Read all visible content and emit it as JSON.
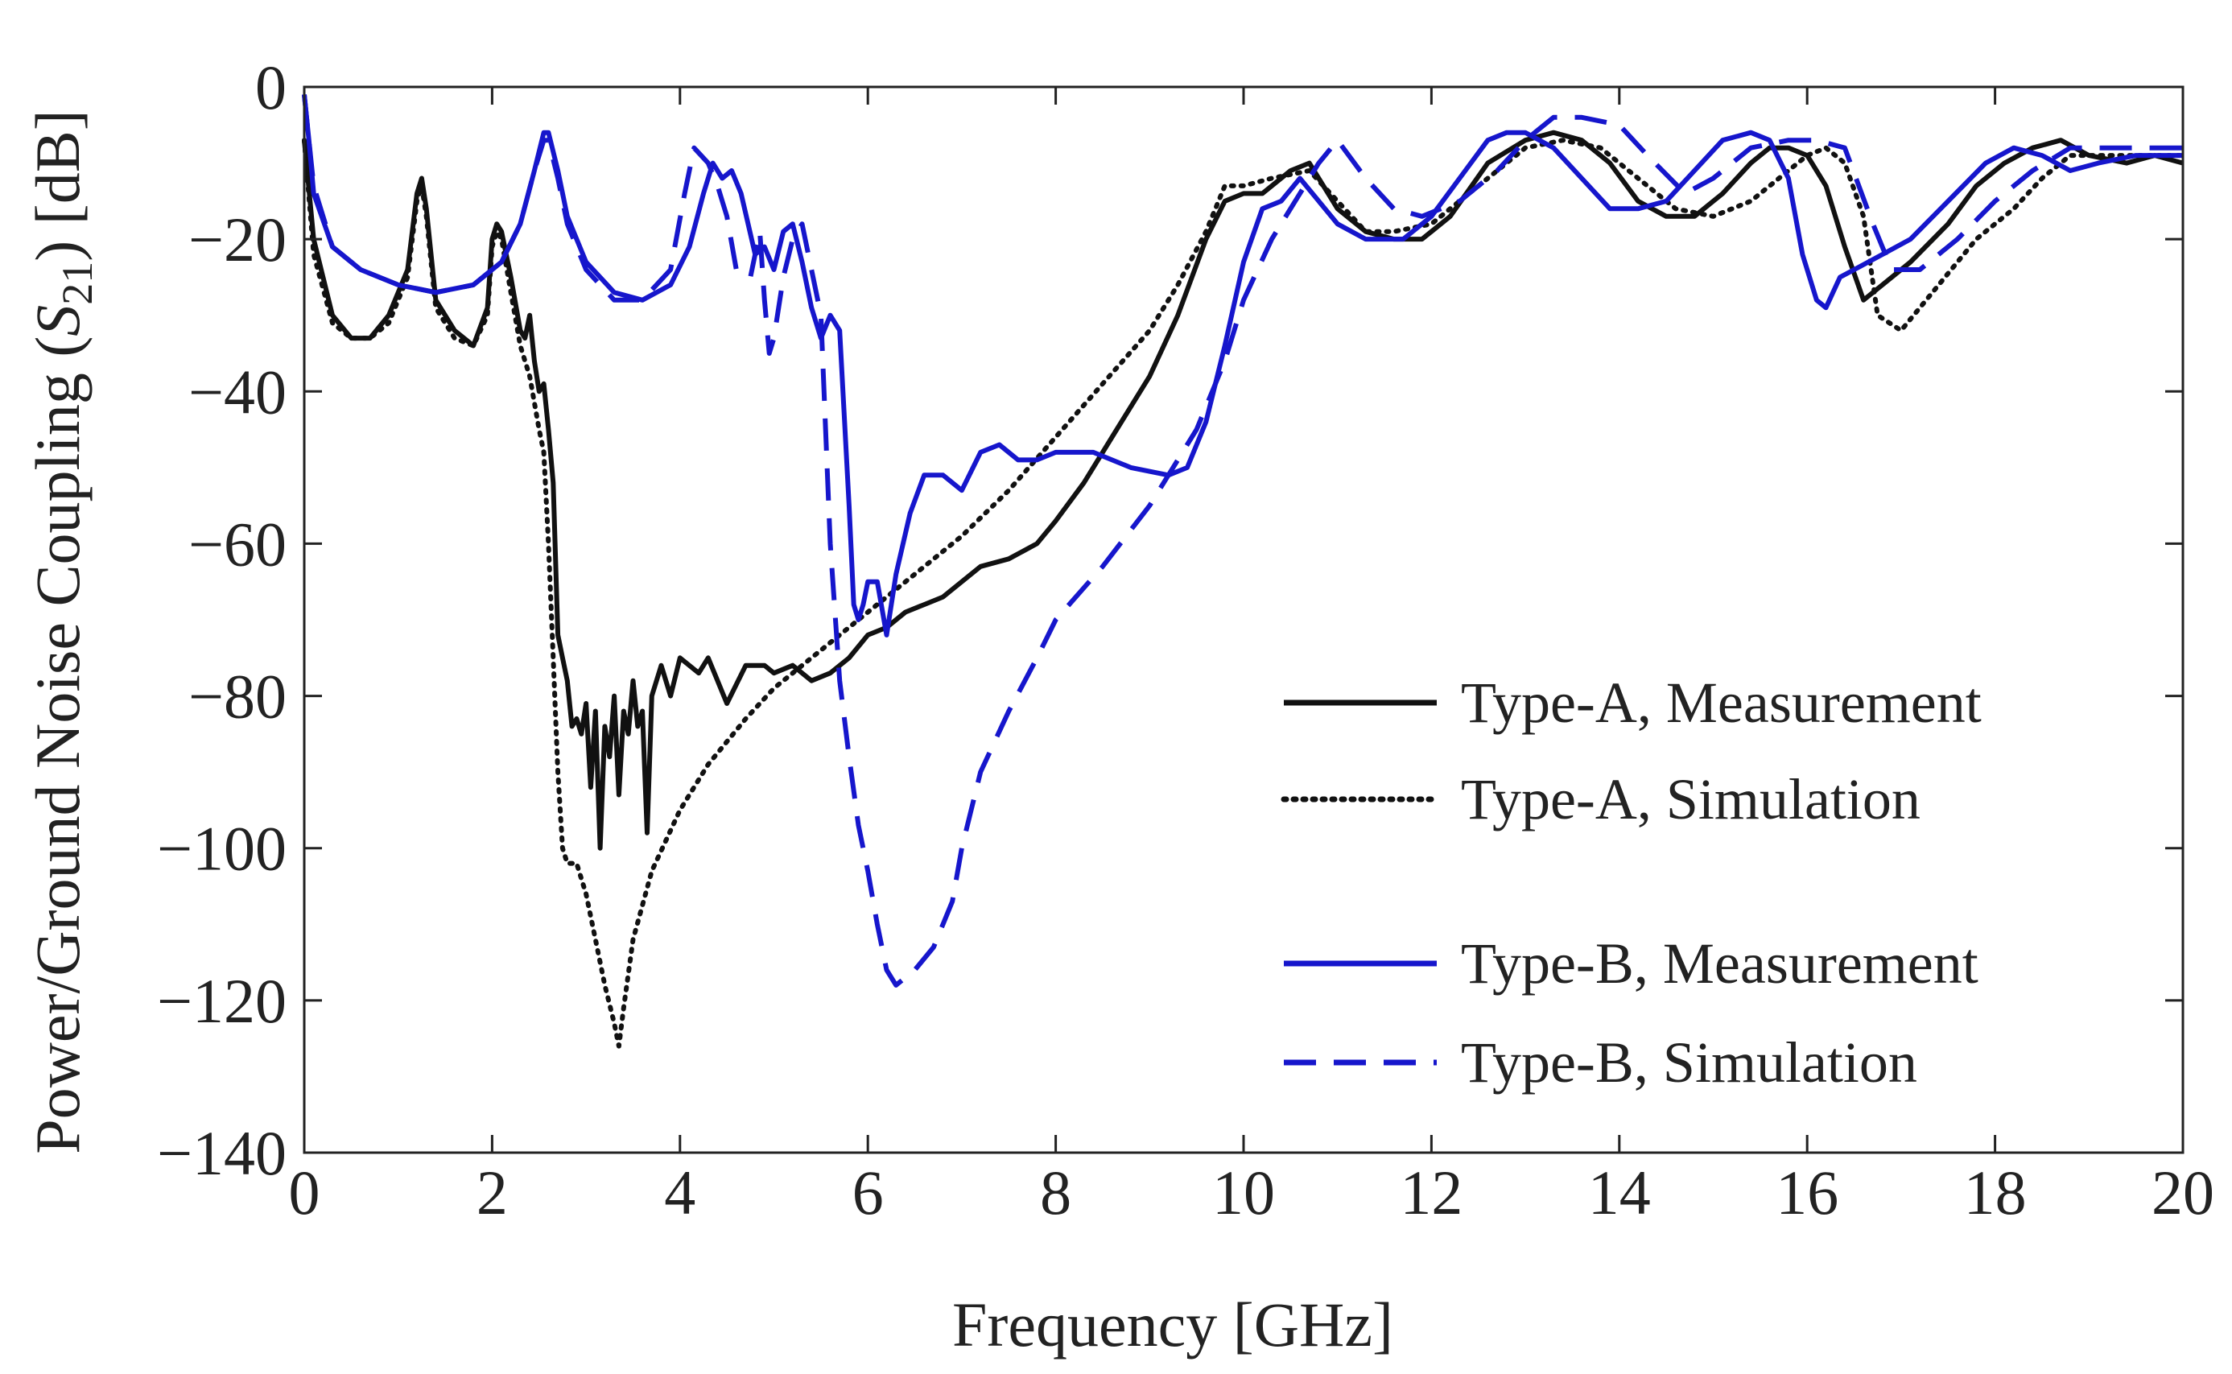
{
  "chart_data": {
    "type": "line",
    "title": "",
    "xlabel": "Frequency [GHz]",
    "ylabel_prefix": "Power/Ground Noise Coupling",
    "ylabel_symbol": "S",
    "ylabel_subscript": "21",
    "ylabel_unit": "[dB]",
    "xlim": [
      0,
      20
    ],
    "ylim": [
      -140,
      0
    ],
    "xticks": [
      0,
      2,
      4,
      6,
      8,
      10,
      12,
      14,
      16,
      18,
      20
    ],
    "xtick_labels": [
      "0",
      "2",
      "4",
      "6",
      "8",
      "10",
      "12",
      "14",
      "16",
      "18",
      "20"
    ],
    "yticks": [
      0,
      -20,
      -40,
      -60,
      -80,
      -100,
      -120,
      -140
    ],
    "ytick_labels": [
      "0",
      "−20",
      "−40",
      "−60",
      "−80",
      "−100",
      "−120",
      "−140"
    ],
    "grid": false,
    "legend_position": "bottom-right",
    "series": [
      {
        "name": "Type-A, Measurement",
        "color": "#111111",
        "style": "solid",
        "x": [
          0,
          0.1,
          0.3,
          0.5,
          0.7,
          0.9,
          1.1,
          1.2,
          1.25,
          1.3,
          1.4,
          1.6,
          1.8,
          1.95,
          2.0,
          2.05,
          2.1,
          2.2,
          2.3,
          2.35,
          2.4,
          2.45,
          2.5,
          2.55,
          2.6,
          2.65,
          2.7,
          2.75,
          2.8,
          2.85,
          2.9,
          2.95,
          3.0,
          3.05,
          3.1,
          3.15,
          3.2,
          3.25,
          3.3,
          3.35,
          3.4,
          3.45,
          3.5,
          3.55,
          3.6,
          3.65,
          3.7,
          3.8,
          3.9,
          4.0,
          4.2,
          4.3,
          4.5,
          4.7,
          4.9,
          5.0,
          5.2,
          5.4,
          5.6,
          5.8,
          6.0,
          6.2,
          6.4,
          6.6,
          6.8,
          7.0,
          7.2,
          7.5,
          7.8,
          8.0,
          8.3,
          8.6,
          9.0,
          9.3,
          9.6,
          9.8,
          10.0,
          10.2,
          10.5,
          10.7,
          11.0,
          11.3,
          11.6,
          11.9,
          12.2,
          12.6,
          13.0,
          13.3,
          13.6,
          13.9,
          14.2,
          14.5,
          14.8,
          15.1,
          15.4,
          15.6,
          15.8,
          16.0,
          16.2,
          16.4,
          16.6,
          16.8,
          17.1,
          17.5,
          17.8,
          18.1,
          18.4,
          18.7,
          19.0,
          19.4,
          19.7,
          20.0
        ],
        "y": [
          -7,
          -20,
          -30,
          -33,
          -33,
          -30,
          -24,
          -14,
          -12,
          -16,
          -28,
          -32,
          -34,
          -29,
          -20,
          -18,
          -19,
          -25,
          -32,
          -33,
          -30,
          -36,
          -40,
          -39,
          -45,
          -52,
          -72,
          -75,
          -78,
          -84,
          -83,
          -85,
          -81,
          -92,
          -82,
          -100,
          -84,
          -88,
          -80,
          -93,
          -82,
          -85,
          -78,
          -84,
          -82,
          -98,
          -80,
          -76,
          -80,
          -75,
          -77,
          -75,
          -81,
          -76,
          -76,
          -77,
          -76,
          -78,
          -77,
          -75,
          -72,
          -71,
          -69,
          -68,
          -67,
          -65,
          -63,
          -62,
          -60,
          -57,
          -52,
          -46,
          -38,
          -30,
          -20,
          -15,
          -14,
          -14,
          -11,
          -10,
          -16,
          -19,
          -20,
          -20,
          -17,
          -10,
          -7,
          -6,
          -7,
          -10,
          -15,
          -17,
          -17,
          -14,
          -10,
          -8,
          -8,
          -9,
          -13,
          -21,
          -28,
          -26,
          -23,
          -18,
          -13,
          -10,
          -8,
          -7,
          -9,
          -10,
          -9,
          -10
        ]
      },
      {
        "name": "Type-A, Simulation",
        "color": "#111111",
        "style": "dotted",
        "x": [
          0,
          0.1,
          0.3,
          0.5,
          0.7,
          0.9,
          1.1,
          1.2,
          1.25,
          1.3,
          1.4,
          1.6,
          1.8,
          1.95,
          2.0,
          2.05,
          2.1,
          2.2,
          2.3,
          2.4,
          2.5,
          2.55,
          2.6,
          2.65,
          2.7,
          2.75,
          2.8,
          2.9,
          3.0,
          3.1,
          3.2,
          3.3,
          3.35,
          3.4,
          3.5,
          3.7,
          4.0,
          4.3,
          4.7,
          5.0,
          5.5,
          6.0,
          6.5,
          7.0,
          7.5,
          8.0,
          8.5,
          9.0,
          9.3,
          9.6,
          9.8,
          10.0,
          10.3,
          10.7,
          11.0,
          11.3,
          11.6,
          12.0,
          12.5,
          13.0,
          13.4,
          13.8,
          14.2,
          14.6,
          15.0,
          15.4,
          15.8,
          16.0,
          16.2,
          16.4,
          16.6,
          16.75,
          17.0,
          17.4,
          17.8,
          18.2,
          18.5,
          18.8,
          19.2,
          19.6,
          20.0
        ],
        "y": [
          -7,
          -22,
          -31,
          -33,
          -33,
          -31,
          -25,
          -15,
          -13,
          -17,
          -29,
          -33,
          -34,
          -30,
          -21,
          -19,
          -20,
          -27,
          -34,
          -38,
          -45,
          -48,
          -60,
          -75,
          -90,
          -100,
          -102,
          -102,
          -106,
          -112,
          -118,
          -123,
          -126,
          -121,
          -112,
          -103,
          -95,
          -89,
          -83,
          -79,
          -74,
          -69,
          -64,
          -59,
          -53,
          -46,
          -39,
          -32,
          -26,
          -19,
          -13,
          -13,
          -12,
          -11,
          -15,
          -19,
          -19,
          -18,
          -13,
          -8,
          -7,
          -8,
          -12,
          -16,
          -17,
          -15,
          -11,
          -9,
          -8,
          -10,
          -17,
          -30,
          -32,
          -26,
          -20,
          -16,
          -12,
          -9,
          -9,
          -9,
          -9
        ]
      },
      {
        "name": "Type-B, Measurement",
        "color": "#1616cc",
        "style": "solid",
        "x": [
          0,
          0.05,
          0.1,
          0.3,
          0.6,
          1.0,
          1.4,
          1.8,
          2.1,
          2.3,
          2.45,
          2.55,
          2.6,
          2.7,
          2.8,
          3.0,
          3.3,
          3.6,
          3.9,
          4.1,
          4.25,
          4.35,
          4.45,
          4.55,
          4.65,
          4.8,
          4.9,
          5.0,
          5.1,
          5.2,
          5.3,
          5.4,
          5.5,
          5.6,
          5.7,
          5.8,
          5.85,
          5.9,
          5.95,
          6.0,
          6.1,
          6.2,
          6.3,
          6.45,
          6.6,
          6.8,
          7.0,
          7.2,
          7.4,
          7.6,
          7.8,
          8.0,
          8.4,
          8.8,
          9.2,
          9.4,
          9.6,
          9.8,
          10.0,
          10.2,
          10.4,
          10.6,
          10.8,
          11.0,
          11.3,
          11.7,
          12.0,
          12.3,
          12.6,
          12.8,
          13.0,
          13.3,
          13.6,
          13.9,
          14.2,
          14.5,
          14.8,
          15.1,
          15.4,
          15.6,
          15.8,
          15.95,
          16.1,
          16.2,
          16.35,
          16.5,
          16.8,
          17.1,
          17.5,
          17.9,
          18.2,
          18.5,
          18.8,
          19.1,
          19.5,
          20.0
        ],
        "y": [
          -1,
          -7,
          -14,
          -21,
          -24,
          -26,
          -27,
          -26,
          -23,
          -18,
          -11,
          -6,
          -6,
          -11,
          -17,
          -23,
          -27,
          -28,
          -26,
          -21,
          -14,
          -10,
          -12,
          -11,
          -14,
          -22,
          -21,
          -24,
          -19,
          -18,
          -23,
          -29,
          -33,
          -30,
          -32,
          -55,
          -68,
          -70,
          -68,
          -65,
          -65,
          -72,
          -64,
          -56,
          -51,
          -51,
          -53,
          -48,
          -47,
          -49,
          -49,
          -48,
          -48,
          -50,
          -51,
          -50,
          -44,
          -34,
          -23,
          -16,
          -15,
          -12,
          -15,
          -18,
          -20,
          -20,
          -17,
          -12,
          -7,
          -6,
          -6,
          -8,
          -12,
          -16,
          -16,
          -15,
          -11,
          -7,
          -6,
          -7,
          -12,
          -22,
          -28,
          -29,
          -25,
          -24,
          -22,
          -20,
          -15,
          -10,
          -8,
          -9,
          -11,
          -10,
          -9,
          -9
        ]
      },
      {
        "name": "Type-B, Simulation",
        "color": "#1616cc",
        "style": "dashed",
        "x": [
          0,
          0.05,
          0.1,
          0.3,
          0.6,
          1.0,
          1.4,
          1.8,
          2.1,
          2.3,
          2.45,
          2.55,
          2.6,
          2.7,
          2.8,
          3.0,
          3.3,
          3.6,
          3.9,
          4.05,
          4.15,
          4.3,
          4.4,
          4.5,
          4.6,
          4.75,
          4.85,
          4.9,
          4.95,
          5.0,
          5.1,
          5.2,
          5.3,
          5.4,
          5.5,
          5.55,
          5.6,
          5.7,
          5.8,
          5.9,
          6.0,
          6.1,
          6.2,
          6.3,
          6.4,
          6.5,
          6.7,
          6.9,
          7.0,
          7.2,
          7.5,
          7.8,
          8.0,
          8.5,
          9.0,
          9.5,
          9.8,
          10.0,
          10.3,
          10.6,
          10.8,
          11.0,
          11.3,
          11.6,
          11.9,
          12.3,
          12.7,
          13.0,
          13.3,
          13.6,
          14.0,
          14.3,
          14.7,
          15.0,
          15.4,
          15.8,
          16.1,
          16.4,
          16.7,
          16.9,
          17.2,
          17.6,
          18.0,
          18.4,
          18.8,
          19.2,
          19.6,
          20.0
        ],
        "y": [
          -1,
          -7,
          -13,
          -21,
          -24,
          -26,
          -27,
          -26,
          -23,
          -18,
          -11,
          -7,
          -7,
          -12,
          -18,
          -24,
          -28,
          -28,
          -24,
          -14,
          -8,
          -10,
          -13,
          -17,
          -24,
          -25,
          -19,
          -28,
          -35,
          -33,
          -25,
          -20,
          -18,
          -24,
          -30,
          -45,
          -60,
          -78,
          -88,
          -97,
          -103,
          -110,
          -116,
          -118,
          -117,
          -116,
          -113,
          -107,
          -100,
          -90,
          -82,
          -75,
          -70,
          -63,
          -55,
          -45,
          -36,
          -28,
          -20,
          -14,
          -10,
          -7,
          -12,
          -16,
          -17,
          -15,
          -11,
          -7,
          -4,
          -4,
          -5,
          -9,
          -14,
          -12,
          -8,
          -7,
          -7,
          -8,
          -18,
          -24,
          -24,
          -20,
          -15,
          -11,
          -8,
          -8,
          -8,
          -8
        ]
      }
    ]
  }
}
